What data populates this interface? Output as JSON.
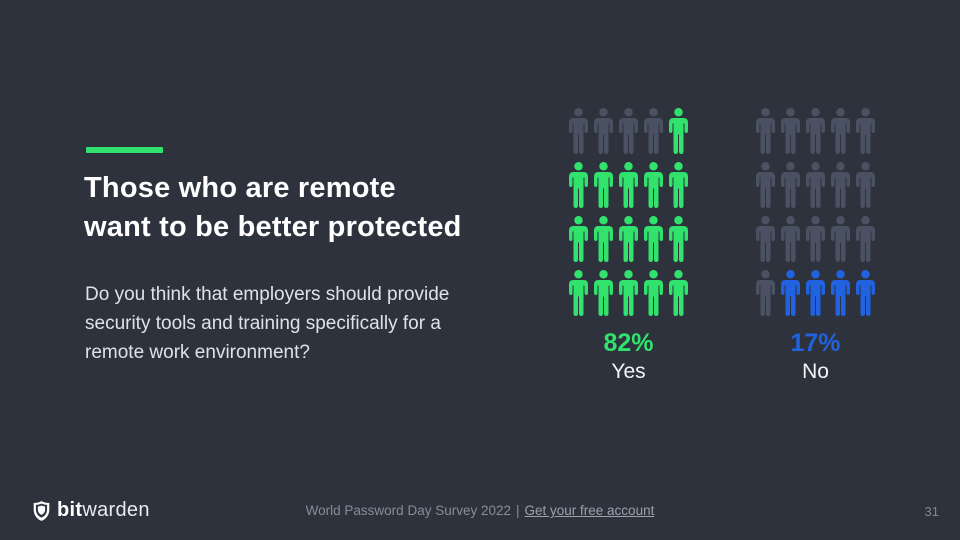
{
  "colors": {
    "background": "#2d323d",
    "green": "#31e26d",
    "blue": "#2162e0",
    "gray": "#4a5162",
    "title": "#ffffff",
    "body_text": "#dfe2e6",
    "footer_text": "#878e98"
  },
  "content": {
    "title_line1": "Those who are remote",
    "title_line2": "want to be better protected",
    "question": "Do you think that employers should provide security tools and training specifically for a remote work environment?"
  },
  "chart_data": {
    "type": "pictograph",
    "title": "Those who are remote want to be better protected",
    "question": "Do you think that employers should provide security tools and training specifically for a remote work environment?",
    "categories": [
      "Yes",
      "No"
    ],
    "values": [
      82,
      17
    ],
    "unit": "%",
    "icons_per_group": 20,
    "grid": {
      "rows": 4,
      "cols": 5
    },
    "groups": [
      {
        "label": "Yes",
        "value_label": "82%",
        "color": "green",
        "icons": [
          "gray",
          "gray",
          "gray",
          "gray",
          "green",
          "green",
          "green",
          "green",
          "green",
          "green",
          "green",
          "green",
          "green",
          "green",
          "green",
          "green",
          "green",
          "green",
          "green",
          "green"
        ]
      },
      {
        "label": "No",
        "value_label": "17%",
        "color": "blue",
        "icons": [
          "gray",
          "gray",
          "gray",
          "gray",
          "gray",
          "gray",
          "gray",
          "gray",
          "gray",
          "gray",
          "gray",
          "gray",
          "gray",
          "gray",
          "gray",
          "gray",
          "blue",
          "blue",
          "blue",
          "blue"
        ]
      }
    ]
  },
  "footer": {
    "brand_bold": "bit",
    "brand_regular": "warden",
    "survey_text": "World Password Day Survey 2022",
    "separator": "|",
    "link_text": "Get your free account",
    "page_number": "31"
  }
}
